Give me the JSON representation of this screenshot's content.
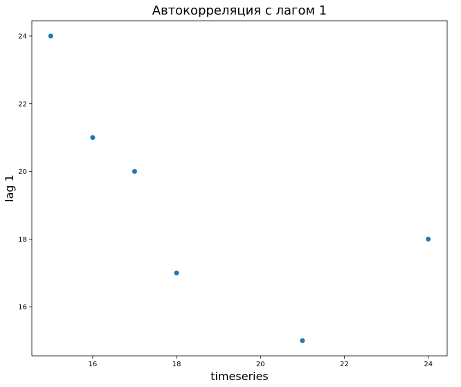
{
  "chart_data": {
    "type": "scatter",
    "title": "Автокорреляция с лагом 1",
    "xlabel": "timeseries",
    "ylabel": "lag 1",
    "x": [
      15,
      16,
      17,
      18,
      21,
      24
    ],
    "y": [
      24,
      21,
      20,
      17,
      15,
      18
    ],
    "xlim": [
      14.55,
      24.45
    ],
    "ylim": [
      14.55,
      24.45
    ],
    "xticks": [
      16,
      18,
      20,
      22,
      24
    ],
    "yticks": [
      16,
      18,
      20,
      22,
      24
    ],
    "marker_color": "#1f77b4",
    "grid": false
  }
}
